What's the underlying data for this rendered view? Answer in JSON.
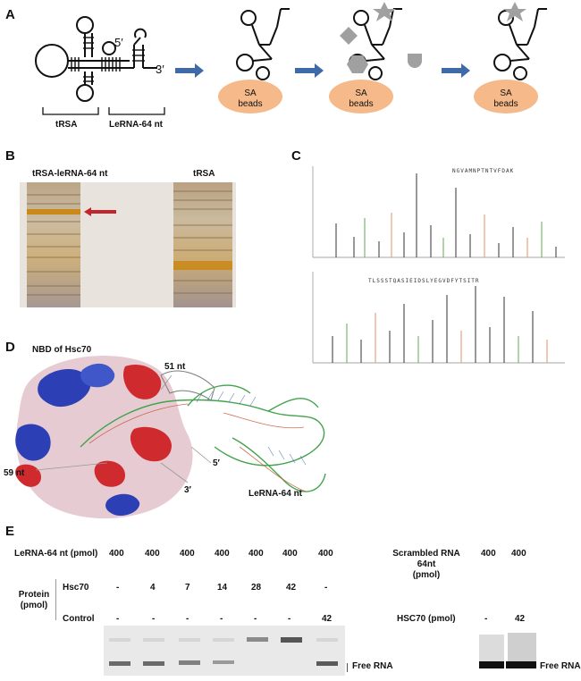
{
  "panelA": {
    "letter": "A",
    "label_5prime": "5′",
    "label_3prime": "3′",
    "bracket_left": "tRSA",
    "bracket_right": "LeRNA-64 nt",
    "beads": [
      "SA\nbeads",
      "SA\nbeads",
      "SA\nbeads"
    ],
    "beads_line1": "SA",
    "beads_line2": "beads",
    "colors": {
      "bead": "#f5b98a",
      "arrow": "#3e6ba8",
      "shape": "#a0a0a0"
    }
  },
  "panelB": {
    "letter": "B",
    "lane_left": "tRSA-leRNA-64 nt",
    "lane_right": "tRSA"
  },
  "panelC": {
    "letter": "C",
    "peptide1": "NGVAMNPTNTVFDAK",
    "peptide2": "TLSSSTQASIEIDSLYEGVDFYTSITR"
  },
  "panelD": {
    "letter": "D",
    "title": "NBD of Hsc70",
    "label_51": "51 nt",
    "label_59": "59 nt",
    "label_5p": "5′",
    "label_3p": "3′",
    "rna_label": "LeRNA-64 nt"
  },
  "panelE": {
    "letter": "E",
    "row_lerna_label": "LeRNA-64 nt (pmol)",
    "lerna_values": [
      "400",
      "400",
      "400",
      "400",
      "400",
      "400",
      "400"
    ],
    "protein_label_1": "Protein",
    "protein_label_2": "(pmol)",
    "hsc70_label": "Hsc70",
    "hsc70_values": [
      "-",
      "4",
      "7",
      "14",
      "28",
      "42",
      "-"
    ],
    "control_label": "Control",
    "control_values": [
      "-",
      "-",
      "-",
      "-",
      "-",
      "-",
      "42"
    ],
    "free_rna": "Free RNA",
    "scrambled_1": "Scrambled RNA",
    "scrambled_2": "64nt",
    "scrambled_3": "(pmol)",
    "scrambled_values": [
      "400",
      "400"
    ],
    "hsc70_caps_label": "HSC70 (pmol)",
    "hsc70_caps_values": [
      "-",
      "42"
    ],
    "free_rna_2": "Free RNA"
  }
}
